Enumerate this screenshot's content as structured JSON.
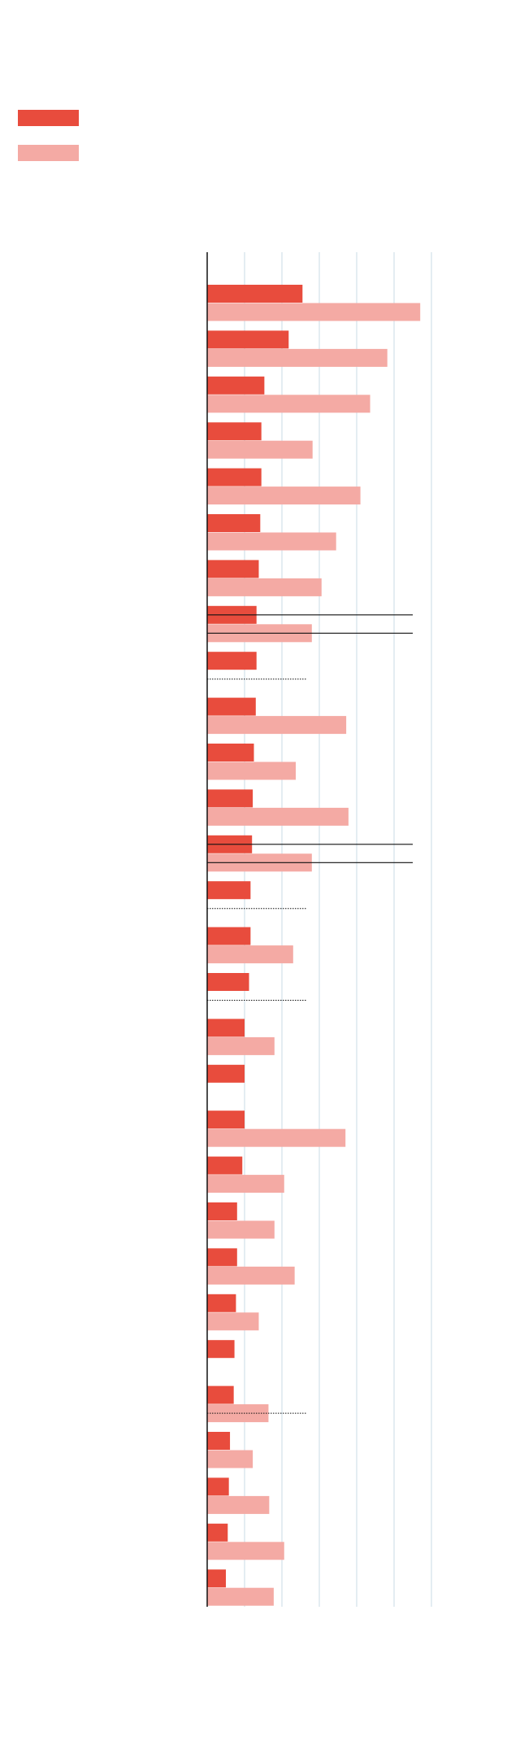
{
  "chart_data": {
    "type": "bar",
    "orientation": "horizontal",
    "title": "",
    "xlabel": "",
    "ylabel": "",
    "xlim": [
      0,
      6
    ],
    "grid": true,
    "legend_position": "top-left",
    "series": [
      {
        "name": "",
        "color": "#e84c3d",
        "values": [
          2.55,
          2.18,
          1.53,
          1.45,
          1.45,
          1.42,
          1.38,
          1.32,
          1.32,
          1.3,
          1.25,
          1.22,
          1.2,
          1.16,
          1.16,
          1.12,
          1.0,
          1.0,
          1.0,
          0.94,
          0.8,
          0.8,
          0.77,
          0.73,
          0.71,
          0.61,
          0.58,
          0.55,
          0.5
        ]
      },
      {
        "name": "",
        "color": "#f4aaa4",
        "values": [
          5.7,
          4.82,
          4.36,
          2.82,
          4.1,
          3.45,
          3.06,
          2.8,
          null,
          3.72,
          2.37,
          3.78,
          2.8,
          null,
          2.3,
          null,
          1.8,
          null,
          3.7,
          2.06,
          1.8,
          2.34,
          1.38,
          null,
          1.64,
          1.22,
          1.66,
          2.06,
          1.78
        ]
      }
    ],
    "reference_lines": [
      {
        "row": 7,
        "x": 5.5,
        "style": "solid"
      },
      {
        "row": 8,
        "x": 2.65,
        "style": "dotted"
      },
      {
        "row": 12,
        "x": 5.5,
        "style": "solid"
      },
      {
        "row": 13,
        "x": 2.65,
        "style": "dotted"
      },
      {
        "row": 15,
        "x": 2.65,
        "style": "dotted"
      },
      {
        "row": 24,
        "x": 2.65,
        "style": "dotted"
      }
    ]
  }
}
